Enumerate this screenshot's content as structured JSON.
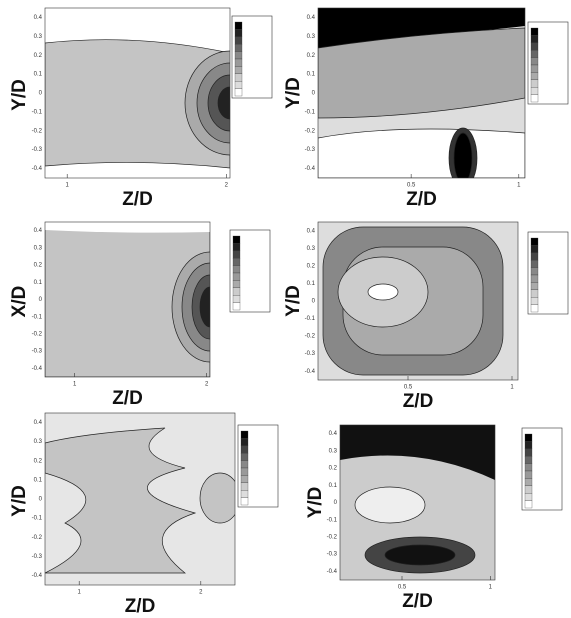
{
  "panels": [
    {
      "xlabel": "Z/D",
      "ylabel": "Y/D",
      "xticks": [
        "1",
        "2"
      ],
      "yticks": [
        "0.4",
        "0.3",
        "0.2",
        "0.1",
        "0",
        "-0.1",
        "-0.2",
        "-0.3",
        "-0.4"
      ]
    },
    {
      "xlabel": "Z/D",
      "ylabel": "Y/D",
      "xticks": [
        "0.5",
        "1"
      ],
      "yticks": [
        "0.4",
        "0.3",
        "0.2",
        "0.1",
        "0",
        "-0.1",
        "-0.2",
        "-0.3",
        "-0.4"
      ]
    },
    {
      "xlabel": "Z/D",
      "ylabel": "X/D",
      "xticks": [
        "1",
        "2"
      ],
      "yticks": [
        "0.4",
        "0.3",
        "0.2",
        "0.1",
        "0",
        "-0.1",
        "-0.2",
        "-0.3",
        "-0.4"
      ]
    },
    {
      "xlabel": "Z/D",
      "ylabel": "Y/D",
      "xticks": [
        "0.5",
        "1"
      ],
      "yticks": [
        "0.4",
        "0.3",
        "0.2",
        "0.1",
        "0",
        "-0.1",
        "-0.2",
        "-0.3",
        "-0.4"
      ]
    },
    {
      "xlabel": "Z/D",
      "ylabel": "Y/D",
      "xticks": [
        "1",
        "2"
      ],
      "yticks": [
        "0.4",
        "0.3",
        "0.2",
        "0.1",
        "0",
        "-0.1",
        "-0.2",
        "-0.3",
        "-0.4"
      ]
    },
    {
      "xlabel": "Z/D",
      "ylabel": "Y/D",
      "xticks": [
        "0.5",
        "1"
      ],
      "yticks": [
        "0.4",
        "0.3",
        "0.2",
        "0.1",
        "0",
        "-0.1",
        "-0.2",
        "-0.3",
        "-0.4"
      ]
    }
  ]
}
